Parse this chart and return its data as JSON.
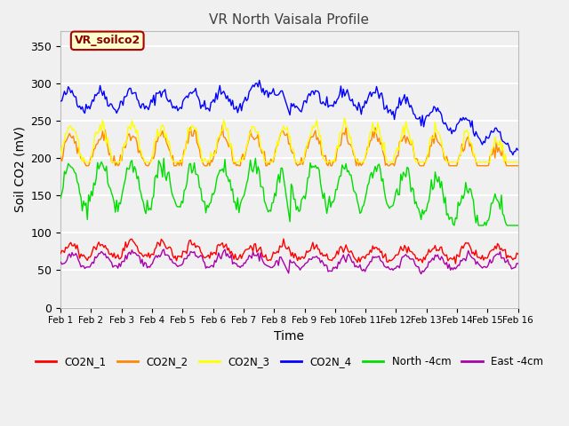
{
  "title": "VR North Vaisala Profile",
  "xlabel": "Time",
  "ylabel": "Soil CO2 (mV)",
  "ylim": [
    0,
    370
  ],
  "xlim": [
    0,
    15
  ],
  "yticks": [
    0,
    50,
    100,
    150,
    200,
    250,
    300,
    350
  ],
  "xtick_labels": [
    "Feb 1",
    "Feb 2",
    "Feb 3",
    "Feb 4",
    "Feb 5",
    "Feb 6",
    "Feb 7",
    "Feb 8",
    "Feb 9",
    "Feb 10",
    "Feb 11",
    "Feb 12",
    "Feb 13",
    "Feb 14",
    "Feb 15",
    "Feb 16"
  ],
  "xtick_positions": [
    0,
    1,
    2,
    3,
    4,
    5,
    6,
    7,
    8,
    9,
    10,
    11,
    12,
    13,
    14,
    15
  ],
  "legend_label": "VR_soilco2",
  "series_labels": [
    "CO2N_1",
    "CO2N_2",
    "CO2N_3",
    "CO2N_4",
    "North -4cm",
    "East -4cm"
  ],
  "series_colors": [
    "#ff0000",
    "#ff8800",
    "#ffff00",
    "#0000ff",
    "#00dd00",
    "#aa00aa"
  ],
  "background_color": "#f0f0f0",
  "plot_bg_color": "#f0f0f0",
  "grid_color": "#ffffff",
  "title_color": "#404040",
  "legend_box_facecolor": "#ffffcc",
  "legend_box_edgecolor": "#aa0000",
  "legend_text_color": "#880000"
}
